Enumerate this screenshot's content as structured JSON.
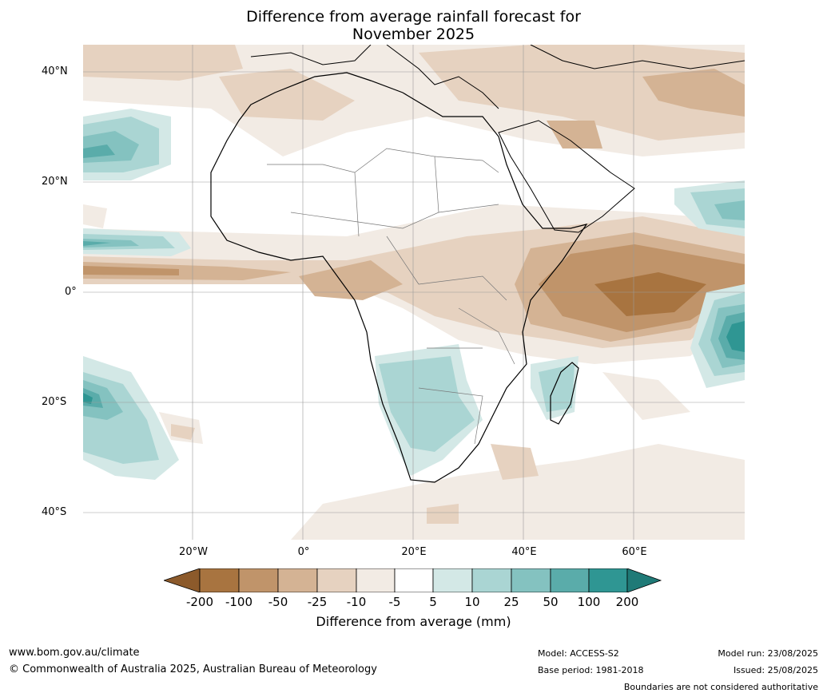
{
  "title": {
    "line1": "Difference from average rainfall forecast for",
    "line2": "November 2025"
  },
  "map": {
    "region": "Africa",
    "lat_labels": [
      "40°N",
      "20°N",
      "0°",
      "20°S",
      "40°S"
    ],
    "lon_labels": [
      "20°W",
      "0°",
      "20°E",
      "40°E",
      "60°E"
    ],
    "colors": {
      "dry_extreme": "#8c5a2b",
      "dry_200": "#a87440",
      "dry_100": "#c0946a",
      "dry_50": "#d4b394",
      "dry_25": "#e6d2c0",
      "dry_10": "#f2ebe4",
      "neutral": "#ffffff",
      "wet_5": "#d3e8e6",
      "wet_10": "#aad5d3",
      "wet_25": "#84c2c0",
      "wet_50": "#5aacaa",
      "wet_100": "#2f9693",
      "wet_extreme": "#1f7a77"
    }
  },
  "colorbar": {
    "ticks": [
      "-200",
      "-100",
      "-50",
      "-25",
      "-10",
      "-5",
      "5",
      "10",
      "25",
      "50",
      "100",
      "200"
    ],
    "label": "Difference from average (mm)"
  },
  "footer": {
    "url": "www.bom.gov.au/climate",
    "copyright": "© Commonwealth of Australia 2025, Australian Bureau of Meteorology",
    "model": "Model: ACCESS-S2",
    "base_period": "Base period: 1981-2018",
    "model_run": "Model run: 23/08/2025",
    "issued": "Issued: 25/08/2025",
    "disclaimer": "Boundaries are not considered authoritative"
  }
}
